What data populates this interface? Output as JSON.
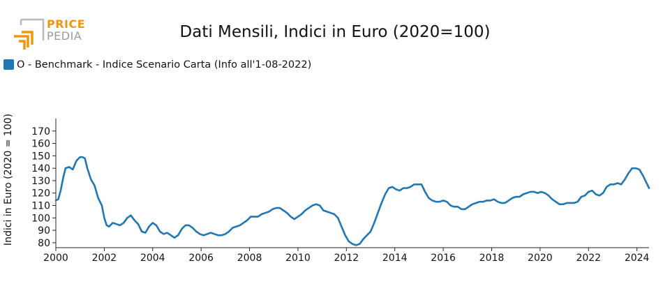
{
  "logo": {
    "line1": "PRICE",
    "line2": "PEDIA",
    "accent_color": "#f0960a",
    "gray_color": "#9a9a9a"
  },
  "chart_data": {
    "type": "line",
    "title": "Dati Mensili, Indici in Euro (2020=100)",
    "ylabel": "Indici in Euro (2020 = 100)",
    "xlabel": "",
    "xlim": [
      2000.0,
      2024.5
    ],
    "ylim": [
      76,
      180
    ],
    "x_ticks": [
      "2000",
      "2002",
      "2004",
      "2006",
      "2008",
      "2010",
      "2012",
      "2014",
      "2016",
      "2018",
      "2020",
      "2022",
      "2024"
    ],
    "y_ticks": [
      80,
      90,
      100,
      110,
      120,
      130,
      140,
      150,
      160,
      170
    ],
    "grid": false,
    "legend_position": "top-left",
    "series": [
      {
        "name": "O - Benchmark - Indice Scenario Carta (Info all'1-08-2022)",
        "color": "#1f77b4",
        "points": [
          [
            2000.0,
            114
          ],
          [
            2000.1,
            115
          ],
          [
            2000.2,
            122
          ],
          [
            2000.3,
            132
          ],
          [
            2000.4,
            140
          ],
          [
            2000.55,
            141
          ],
          [
            2000.7,
            139
          ],
          [
            2000.85,
            146
          ],
          [
            2001.0,
            149
          ],
          [
            2001.1,
            149
          ],
          [
            2001.2,
            148
          ],
          [
            2001.3,
            140
          ],
          [
            2001.45,
            131
          ],
          [
            2001.6,
            126
          ],
          [
            2001.75,
            116
          ],
          [
            2001.9,
            110
          ],
          [
            2002.0,
            100
          ],
          [
            2002.1,
            94
          ],
          [
            2002.2,
            93
          ],
          [
            2002.35,
            96
          ],
          [
            2002.5,
            95
          ],
          [
            2002.65,
            94
          ],
          [
            2002.8,
            96
          ],
          [
            2002.95,
            100
          ],
          [
            2003.1,
            102
          ],
          [
            2003.25,
            98
          ],
          [
            2003.4,
            95
          ],
          [
            2003.55,
            89
          ],
          [
            2003.7,
            88
          ],
          [
            2003.85,
            93
          ],
          [
            2004.0,
            96
          ],
          [
            2004.15,
            94
          ],
          [
            2004.3,
            89
          ],
          [
            2004.45,
            87
          ],
          [
            2004.6,
            88
          ],
          [
            2004.75,
            86
          ],
          [
            2004.9,
            84
          ],
          [
            2005.05,
            86
          ],
          [
            2005.2,
            91
          ],
          [
            2005.35,
            94
          ],
          [
            2005.5,
            94
          ],
          [
            2005.65,
            92
          ],
          [
            2005.8,
            89
          ],
          [
            2005.95,
            87
          ],
          [
            2006.1,
            86
          ],
          [
            2006.25,
            87
          ],
          [
            2006.4,
            88
          ],
          [
            2006.55,
            87
          ],
          [
            2006.7,
            86
          ],
          [
            2006.85,
            86
          ],
          [
            2007.0,
            87
          ],
          [
            2007.15,
            89
          ],
          [
            2007.3,
            92
          ],
          [
            2007.45,
            93
          ],
          [
            2007.6,
            94
          ],
          [
            2007.75,
            96
          ],
          [
            2007.9,
            98
          ],
          [
            2008.05,
            101
          ],
          [
            2008.2,
            101
          ],
          [
            2008.35,
            101
          ],
          [
            2008.5,
            103
          ],
          [
            2008.65,
            104
          ],
          [
            2008.8,
            105
          ],
          [
            2008.95,
            107
          ],
          [
            2009.1,
            108
          ],
          [
            2009.25,
            108
          ],
          [
            2009.4,
            106
          ],
          [
            2009.55,
            104
          ],
          [
            2009.7,
            101
          ],
          [
            2009.85,
            99
          ],
          [
            2010.0,
            101
          ],
          [
            2010.15,
            103
          ],
          [
            2010.3,
            106
          ],
          [
            2010.45,
            108
          ],
          [
            2010.6,
            110
          ],
          [
            2010.75,
            111
          ],
          [
            2010.9,
            110
          ],
          [
            2011.05,
            106
          ],
          [
            2011.2,
            105
          ],
          [
            2011.35,
            104
          ],
          [
            2011.5,
            103
          ],
          [
            2011.65,
            100
          ],
          [
            2011.8,
            93
          ],
          [
            2011.95,
            86
          ],
          [
            2012.1,
            81
          ],
          [
            2012.25,
            79
          ],
          [
            2012.4,
            78
          ],
          [
            2012.55,
            79
          ],
          [
            2012.7,
            83
          ],
          [
            2012.85,
            86
          ],
          [
            2013.0,
            89
          ],
          [
            2013.15,
            96
          ],
          [
            2013.3,
            104
          ],
          [
            2013.45,
            112
          ],
          [
            2013.6,
            119
          ],
          [
            2013.75,
            124
          ],
          [
            2013.9,
            125
          ],
          [
            2014.05,
            123
          ],
          [
            2014.2,
            122
          ],
          [
            2014.35,
            124
          ],
          [
            2014.5,
            124
          ],
          [
            2014.65,
            125
          ],
          [
            2014.8,
            127
          ],
          [
            2014.95,
            127
          ],
          [
            2015.1,
            127
          ],
          [
            2015.25,
            121
          ],
          [
            2015.4,
            116
          ],
          [
            2015.55,
            114
          ],
          [
            2015.7,
            113
          ],
          [
            2015.85,
            113
          ],
          [
            2016.0,
            114
          ],
          [
            2016.15,
            113
          ],
          [
            2016.3,
            110
          ],
          [
            2016.45,
            109
          ],
          [
            2016.6,
            109
          ],
          [
            2016.75,
            107
          ],
          [
            2016.9,
            107
          ],
          [
            2017.05,
            109
          ],
          [
            2017.2,
            111
          ],
          [
            2017.35,
            112
          ],
          [
            2017.5,
            113
          ],
          [
            2017.65,
            113
          ],
          [
            2017.8,
            114
          ],
          [
            2017.95,
            114
          ],
          [
            2018.1,
            115
          ],
          [
            2018.25,
            113
          ],
          [
            2018.4,
            112
          ],
          [
            2018.55,
            112
          ],
          [
            2018.7,
            114
          ],
          [
            2018.85,
            116
          ],
          [
            2019.0,
            117
          ],
          [
            2019.15,
            117
          ],
          [
            2019.3,
            119
          ],
          [
            2019.45,
            120
          ],
          [
            2019.6,
            121
          ],
          [
            2019.75,
            121
          ],
          [
            2019.9,
            120
          ],
          [
            2020.05,
            121
          ],
          [
            2020.2,
            120
          ],
          [
            2020.35,
            118
          ],
          [
            2020.5,
            115
          ],
          [
            2020.65,
            113
          ],
          [
            2020.8,
            111
          ],
          [
            2020.95,
            111
          ],
          [
            2021.1,
            112
          ],
          [
            2021.25,
            112
          ],
          [
            2021.4,
            112
          ],
          [
            2021.55,
            113
          ],
          [
            2021.7,
            117
          ],
          [
            2021.85,
            118
          ],
          [
            2022.0,
            121
          ],
          [
            2022.15,
            122
          ],
          [
            2022.3,
            119
          ],
          [
            2022.45,
            118
          ],
          [
            2022.6,
            120
          ],
          [
            2022.75,
            125
          ],
          [
            2022.9,
            127
          ],
          [
            2023.05,
            127
          ],
          [
            2023.2,
            128
          ],
          [
            2023.35,
            127
          ],
          [
            2023.5,
            131
          ],
          [
            2023.65,
            136
          ],
          [
            2023.8,
            140
          ],
          [
            2023.95,
            140
          ],
          [
            2024.1,
            139
          ],
          [
            2024.25,
            134
          ],
          [
            2024.4,
            128
          ],
          [
            2024.5,
            124
          ]
        ]
      }
    ]
  }
}
